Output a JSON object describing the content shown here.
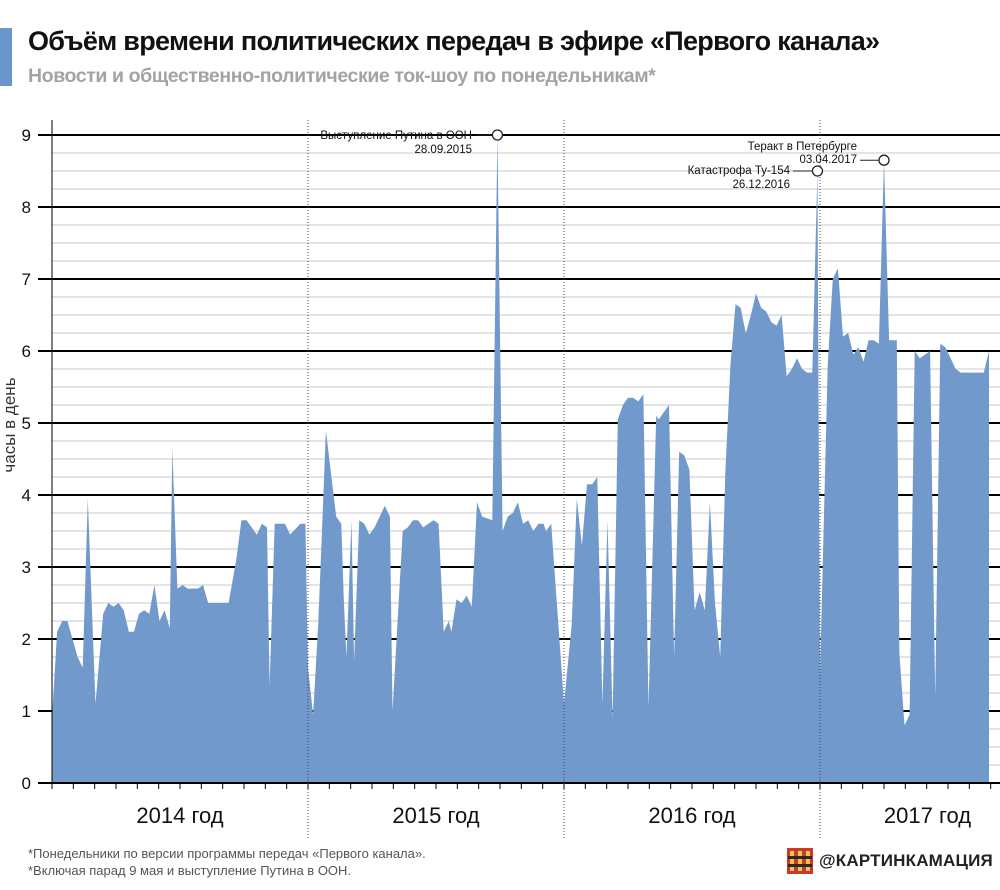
{
  "header": {
    "title": "Объём времени политических передач в эфире «Первого канала»",
    "subtitle": "Новости и общественно-политические ток-шоу по понедельникам*"
  },
  "footer": {
    "footnote_1": "*Понедельники по версии программы передач «Первого канала».",
    "footnote_2": "*Включая парад 9 мая и выступление Путина в ООН.",
    "brand": "@КАРТИНКАМАЦИЯ"
  },
  "colors": {
    "accent": "#6b96cc",
    "area": "#7299cc",
    "grid": "#000000",
    "minor_grid": "#c8c8c8",
    "subtitle": "#a3a3a3"
  },
  "chart_data": {
    "type": "area",
    "ylabel": "часы в день",
    "xlabel": "",
    "ylim": [
      0,
      9
    ],
    "y_ticks": [
      "0",
      "1",
      "2",
      "3",
      "4",
      "5",
      "6",
      "7",
      "8",
      "9"
    ],
    "grid": true,
    "x_unit": "fractional year (start of 2014 = 2014.0)",
    "x_range": [
      2014.0,
      2017.66
    ],
    "year_labels": [
      {
        "label": "2014 год",
        "x": 2014.5
      },
      {
        "label": "2015 год",
        "x": 2015.5
      },
      {
        "label": "2016 год",
        "x": 2016.5
      },
      {
        "label": "2017 год",
        "x": 2017.42
      }
    ],
    "annotations": [
      {
        "text": "Выступление Путина в ООН",
        "date": "28.09.2015",
        "x": 2015.74,
        "y": 9.0
      },
      {
        "text": "Катастрофа Ту-154",
        "date": "26.12.2016",
        "x": 2016.99,
        "y": 8.5
      },
      {
        "text": "Теракт в Петербурге",
        "date": "03.04.2017",
        "x": 2017.25,
        "y": 8.65
      }
    ],
    "series": [
      {
        "points": [
          [
            2014.0,
            0.9
          ],
          [
            2014.02,
            2.1
          ],
          [
            2014.04,
            2.25
          ],
          [
            2014.06,
            2.25
          ],
          [
            2014.08,
            2.0
          ],
          [
            2014.1,
            1.75
          ],
          [
            2014.12,
            1.6
          ],
          [
            2014.14,
            3.95
          ],
          [
            2014.17,
            1.1
          ],
          [
            2014.2,
            2.35
          ],
          [
            2014.22,
            2.5
          ],
          [
            2014.24,
            2.45
          ],
          [
            2014.26,
            2.5
          ],
          [
            2014.28,
            2.4
          ],
          [
            2014.3,
            2.1
          ],
          [
            2014.32,
            2.1
          ],
          [
            2014.34,
            2.35
          ],
          [
            2014.36,
            2.4
          ],
          [
            2014.38,
            2.35
          ],
          [
            2014.4,
            2.75
          ],
          [
            2014.42,
            2.25
          ],
          [
            2014.44,
            2.4
          ],
          [
            2014.46,
            2.15
          ],
          [
            2014.47,
            4.65
          ],
          [
            2014.49,
            2.7
          ],
          [
            2014.51,
            2.75
          ],
          [
            2014.53,
            2.7
          ],
          [
            2014.57,
            2.7
          ],
          [
            2014.59,
            2.75
          ],
          [
            2014.61,
            2.5
          ],
          [
            2014.69,
            2.5
          ],
          [
            2014.72,
            3.1
          ],
          [
            2014.74,
            3.65
          ],
          [
            2014.76,
            3.65
          ],
          [
            2014.78,
            3.55
          ],
          [
            2014.8,
            3.45
          ],
          [
            2014.82,
            3.6
          ],
          [
            2014.84,
            3.55
          ],
          [
            2014.85,
            1.35
          ],
          [
            2014.87,
            3.6
          ],
          [
            2014.91,
            3.6
          ],
          [
            2014.93,
            3.45
          ],
          [
            2014.97,
            3.6
          ],
          [
            2014.99,
            3.6
          ],
          [
            2015.0,
            1.6
          ],
          [
            2015.02,
            0.95
          ],
          [
            2015.04,
            2.2
          ],
          [
            2015.06,
            4.0
          ],
          [
            2015.07,
            4.9
          ],
          [
            2015.09,
            4.3
          ],
          [
            2015.11,
            3.7
          ],
          [
            2015.13,
            3.6
          ],
          [
            2015.14,
            2.55
          ],
          [
            2015.15,
            1.75
          ],
          [
            2015.17,
            3.65
          ],
          [
            2015.18,
            1.7
          ],
          [
            2015.2,
            3.65
          ],
          [
            2015.22,
            3.6
          ],
          [
            2015.24,
            3.45
          ],
          [
            2015.26,
            3.55
          ],
          [
            2015.28,
            3.7
          ],
          [
            2015.3,
            3.85
          ],
          [
            2015.32,
            3.7
          ],
          [
            2015.33,
            1.0
          ],
          [
            2015.37,
            3.5
          ],
          [
            2015.39,
            3.55
          ],
          [
            2015.41,
            3.65
          ],
          [
            2015.43,
            3.65
          ],
          [
            2015.45,
            3.55
          ],
          [
            2015.47,
            3.6
          ],
          [
            2015.49,
            3.65
          ],
          [
            2015.51,
            3.6
          ],
          [
            2015.53,
            2.1
          ],
          [
            2015.55,
            2.25
          ],
          [
            2015.56,
            2.1
          ],
          [
            2015.58,
            2.55
          ],
          [
            2015.6,
            2.5
          ],
          [
            2015.62,
            2.6
          ],
          [
            2015.64,
            2.45
          ],
          [
            2015.66,
            3.9
          ],
          [
            2015.68,
            3.7
          ],
          [
            2015.72,
            3.65
          ],
          [
            2015.74,
            9.0
          ],
          [
            2015.76,
            3.5
          ],
          [
            2015.78,
            3.7
          ],
          [
            2015.8,
            3.75
          ],
          [
            2015.82,
            3.9
          ],
          [
            2015.84,
            3.6
          ],
          [
            2015.86,
            3.65
          ],
          [
            2015.88,
            3.5
          ],
          [
            2015.9,
            3.6
          ],
          [
            2015.92,
            3.6
          ],
          [
            2015.93,
            3.5
          ],
          [
            2015.95,
            3.6
          ],
          [
            2016.0,
            1.1
          ],
          [
            2016.03,
            2.2
          ],
          [
            2016.05,
            3.95
          ],
          [
            2016.07,
            3.3
          ],
          [
            2016.09,
            4.15
          ],
          [
            2016.11,
            4.15
          ],
          [
            2016.13,
            4.25
          ],
          [
            2016.15,
            1.1
          ],
          [
            2016.17,
            3.65
          ],
          [
            2016.19,
            0.9
          ],
          [
            2016.21,
            5.05
          ],
          [
            2016.23,
            5.25
          ],
          [
            2016.25,
            5.35
          ],
          [
            2016.27,
            5.35
          ],
          [
            2016.29,
            5.3
          ],
          [
            2016.31,
            5.4
          ],
          [
            2016.33,
            1.05
          ],
          [
            2016.36,
            5.1
          ],
          [
            2016.37,
            5.05
          ],
          [
            2016.39,
            5.15
          ],
          [
            2016.41,
            5.25
          ],
          [
            2016.43,
            1.75
          ],
          [
            2016.45,
            4.6
          ],
          [
            2016.47,
            4.55
          ],
          [
            2016.49,
            4.35
          ],
          [
            2016.51,
            2.4
          ],
          [
            2016.53,
            2.65
          ],
          [
            2016.55,
            2.4
          ],
          [
            2016.57,
            3.9
          ],
          [
            2016.59,
            2.5
          ],
          [
            2016.61,
            1.75
          ],
          [
            2016.63,
            4.3
          ],
          [
            2016.65,
            5.8
          ],
          [
            2016.67,
            6.65
          ],
          [
            2016.69,
            6.6
          ],
          [
            2016.71,
            6.25
          ],
          [
            2016.73,
            6.5
          ],
          [
            2016.75,
            6.8
          ],
          [
            2016.77,
            6.6
          ],
          [
            2016.79,
            6.55
          ],
          [
            2016.81,
            6.4
          ],
          [
            2016.83,
            6.35
          ],
          [
            2016.85,
            6.5
          ],
          [
            2016.87,
            5.65
          ],
          [
            2016.89,
            5.75
          ],
          [
            2016.91,
            5.9
          ],
          [
            2016.93,
            5.75
          ],
          [
            2016.95,
            5.7
          ],
          [
            2016.97,
            5.7
          ],
          [
            2016.99,
            8.5
          ],
          [
            2017.0,
            1.5
          ],
          [
            2017.03,
            5.8
          ],
          [
            2017.05,
            7.0
          ],
          [
            2017.07,
            7.15
          ],
          [
            2017.09,
            6.2
          ],
          [
            2017.11,
            6.25
          ],
          [
            2017.13,
            5.95
          ],
          [
            2017.15,
            6.05
          ],
          [
            2017.17,
            5.85
          ],
          [
            2017.19,
            6.15
          ],
          [
            2017.21,
            6.15
          ],
          [
            2017.23,
            6.1
          ],
          [
            2017.25,
            8.65
          ],
          [
            2017.27,
            6.15
          ],
          [
            2017.3,
            6.15
          ],
          [
            2017.31,
            1.8
          ],
          [
            2017.33,
            0.8
          ],
          [
            2017.35,
            0.95
          ],
          [
            2017.37,
            6.0
          ],
          [
            2017.39,
            5.9
          ],
          [
            2017.41,
            5.95
          ],
          [
            2017.43,
            6.0
          ],
          [
            2017.45,
            1.2
          ],
          [
            2017.47,
            6.1
          ],
          [
            2017.49,
            6.05
          ],
          [
            2017.51,
            5.9
          ],
          [
            2017.53,
            5.75
          ],
          [
            2017.55,
            5.7
          ],
          [
            2017.6,
            5.7
          ],
          [
            2017.64,
            5.7
          ],
          [
            2017.66,
            6.0
          ]
        ]
      }
    ]
  }
}
